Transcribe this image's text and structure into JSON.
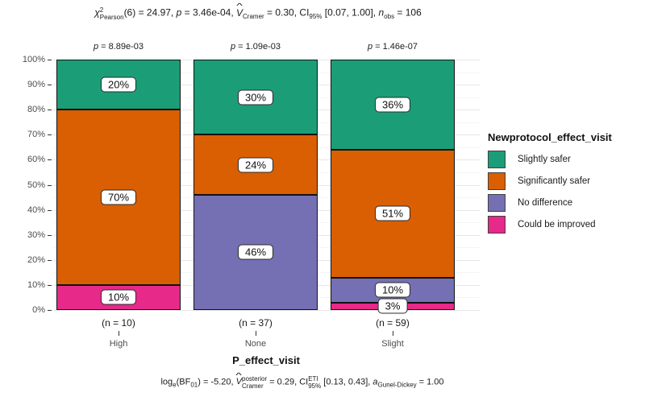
{
  "header": {
    "chi": "χ",
    "chi_sup": "2",
    "chi_sub": "Pearson",
    "seg1": "(6) = 24.97, ",
    "p": "p",
    "seg2": " = 3.46e-04, ",
    "v_hat": "^",
    "v": "V",
    "v_sub": "Cramer",
    "seg3": " = 0.30, ",
    "ci": "CI",
    "ci_sub": "95%",
    "seg4": " [0.07, 1.00], ",
    "n": "n",
    "n_sub": "obs",
    "seg5": " = 106"
  },
  "caption": {
    "log": "log",
    "log_sub": "e",
    "bf_open": "(BF",
    "bf_sub": "01",
    "seg1": ") = -5.20, ",
    "v_hat": "^",
    "v": "V",
    "v_sup": "posterior",
    "v_sub": "Cramer",
    "seg2": " = 0.29, ",
    "ci": "CI",
    "ci_sup": "ETI",
    "ci_sub": "95%",
    "seg3": " [0.13, 0.43], ",
    "a": "a",
    "a_sub": "Gunel-Dickey",
    "seg4": " = 1.00"
  },
  "chart_data": {
    "type": "bar",
    "subtype": "stacked-percent",
    "title": "chi2_Pearson(6) = 24.97, p = 3.46e-04, V_Cramer = 0.30, CI_95% [0.07, 1.00], n_obs = 106",
    "caption_text": "log_e(BF_01) = -5.20, V_Cramer^posterior = 0.29, CI_95%^ETI [0.13, 0.43], a_Gunel-Dickey = 1.00",
    "categories": [
      "High",
      "None",
      "Slight"
    ],
    "sample_labels": [
      "(n = 10)",
      "(n = 37)",
      "(n = 59)"
    ],
    "pvalue_symbol": "p",
    "pvalue_labels": [
      "= 8.89e-03",
      "= 1.09e-03",
      "= 1.46e-07"
    ],
    "series": [
      {
        "name": "Slightly safer",
        "color": "#1b9e77",
        "values": [
          20,
          30,
          36
        ]
      },
      {
        "name": "Significantly safer",
        "color": "#d95f02",
        "values": [
          70,
          24,
          51
        ]
      },
      {
        "name": "No difference",
        "color": "#7570b3",
        "values": [
          0,
          46,
          10
        ]
      },
      {
        "name": "Could be improved",
        "color": "#e7298a",
        "values": [
          10,
          0,
          3
        ]
      }
    ],
    "xlabel": "P_effect_visit",
    "legend_title": "Newprotocol_effect_visit",
    "legend_position": "right",
    "y_ticks": [
      "100%",
      "90%",
      "80%",
      "70%",
      "60%",
      "50%",
      "40%",
      "30%",
      "20%",
      "10%",
      "0%"
    ],
    "ylim": [
      0,
      100
    ],
    "grid": true
  }
}
